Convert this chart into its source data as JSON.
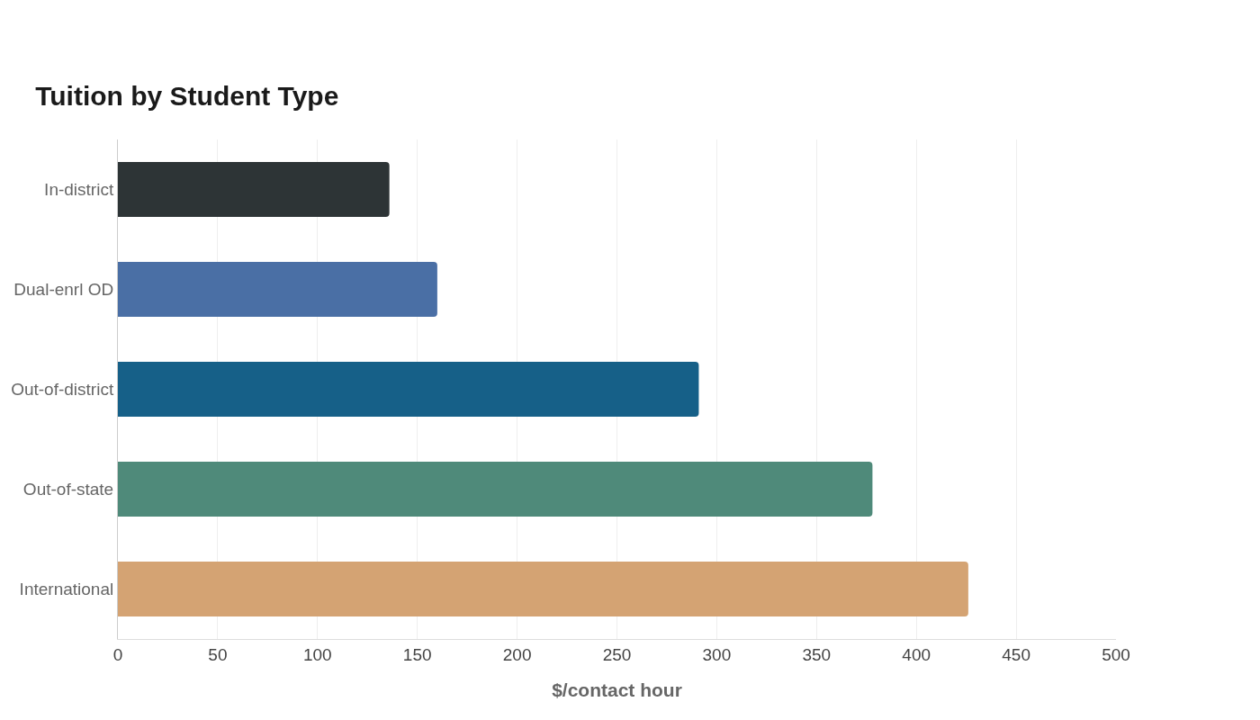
{
  "chart_data": {
    "type": "bar",
    "orientation": "horizontal",
    "title": "Tuition by Student Type",
    "xlabel": "$/contact hour",
    "categories": [
      "In-district",
      "Dual-enrl OD",
      "Out-of-district",
      "Out-of-state",
      "International"
    ],
    "values": [
      136,
      160,
      291,
      378,
      426
    ],
    "colors": [
      "#2d3436",
      "#4a6fa5",
      "#166088",
      "#4f8a7a",
      "#d4a373"
    ],
    "xlim": [
      0,
      500
    ],
    "xticks": [
      0,
      50,
      100,
      150,
      200,
      250,
      300,
      350,
      400,
      450,
      500
    ],
    "grid": "x"
  }
}
